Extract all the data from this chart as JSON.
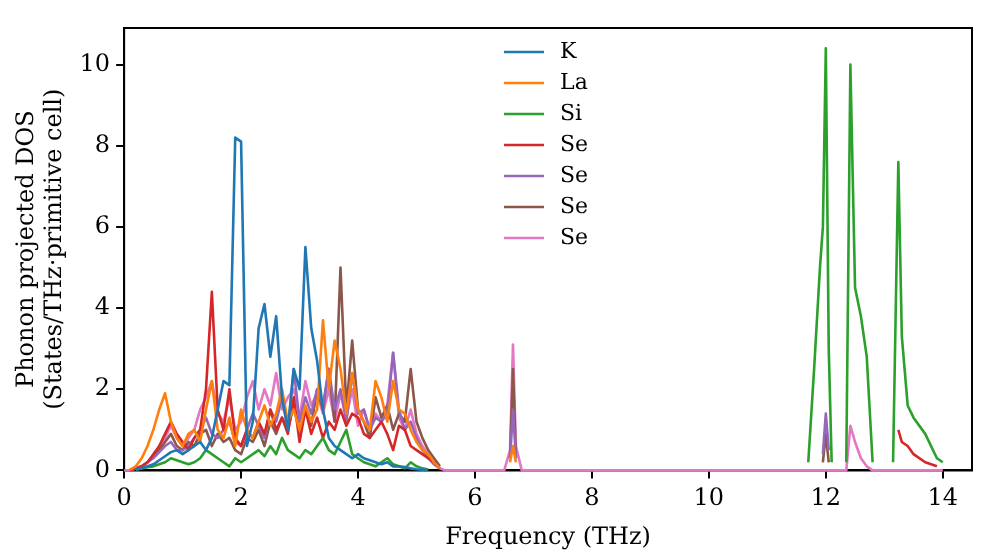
{
  "chart_data": {
    "type": "line",
    "xlabel": "Frequency (THz)",
    "ylabel": "Phonon projected DOS\n(States/THz·primitive cell)",
    "x": [
      0,
      0.1,
      0.2,
      0.3,
      0.4,
      0.5,
      0.6,
      0.7,
      0.8,
      0.9,
      1.0,
      1.1,
      1.2,
      1.3,
      1.4,
      1.5,
      1.6,
      1.7,
      1.8,
      1.9,
      2.0,
      2.1,
      2.2,
      2.3,
      2.4,
      2.5,
      2.6,
      2.7,
      2.8,
      2.9,
      3.0,
      3.1,
      3.2,
      3.3,
      3.4,
      3.5,
      3.6,
      3.7,
      3.8,
      3.9,
      4.0,
      4.1,
      4.2,
      4.3,
      4.4,
      4.5,
      4.6,
      4.7,
      4.8,
      4.9,
      5.0,
      5.1,
      5.2,
      5.3,
      5.4,
      5.5,
      6.5,
      6.6,
      6.65,
      6.7,
      6.8,
      7.0,
      11.6,
      11.7,
      11.8,
      11.9,
      11.95,
      12.0,
      12.05,
      12.1,
      12.2,
      12.3,
      12.35,
      12.42,
      12.5,
      12.6,
      12.7,
      12.8,
      13.0,
      13.15,
      13.24,
      13.3,
      13.4,
      13.5,
      13.7,
      13.9,
      14.0
    ],
    "series": [
      {
        "name": "K",
        "color": "#1f77b4",
        "values": [
          null,
          null,
          0.02,
          0.05,
          0.1,
          0.15,
          0.25,
          0.35,
          0.45,
          0.5,
          0.4,
          0.5,
          0.6,
          0.7,
          0.5,
          0.8,
          1.5,
          2.2,
          2.1,
          8.2,
          8.1,
          0.6,
          1.2,
          3.5,
          4.1,
          2.8,
          3.8,
          1.8,
          1.0,
          2.5,
          2.0,
          5.5,
          3.5,
          2.7,
          1.5,
          0.8,
          0.6,
          0.5,
          0.4,
          0.3,
          0.4,
          0.3,
          0.25,
          0.2,
          0.15,
          0.2,
          0.1,
          0.1,
          0.08,
          0.05,
          0.03,
          0.02,
          0.01,
          null,
          null,
          null,
          null,
          null,
          null,
          null,
          null,
          null,
          null,
          null,
          null,
          null,
          null,
          null,
          null,
          null,
          null,
          null,
          null,
          null,
          null,
          null,
          null,
          null,
          null,
          null,
          null,
          null,
          null,
          null,
          null,
          null,
          null
        ]
      },
      {
        "name": "La",
        "color": "#ff7f0e",
        "values": [
          null,
          0.02,
          0.1,
          0.3,
          0.6,
          1.0,
          1.5,
          1.9,
          1.2,
          0.8,
          0.6,
          0.9,
          1.0,
          0.7,
          1.5,
          2.2,
          1.0,
          0.8,
          1.3,
          0.6,
          1.5,
          1.0,
          0.8,
          1.2,
          1.6,
          1.1,
          1.4,
          2.0,
          1.2,
          1.5,
          1.0,
          1.6,
          1.2,
          1.5,
          3.7,
          2.0,
          3.2,
          2.5,
          1.4,
          2.4,
          1.5,
          1.2,
          1.0,
          2.2,
          1.8,
          1.2,
          2.2,
          1.5,
          1.4,
          1.0,
          0.7,
          0.5,
          0.4,
          0.2,
          0.05,
          null,
          null,
          0.2,
          0.6,
          0.2,
          null,
          null,
          null,
          null,
          null,
          null,
          null,
          null,
          null,
          null,
          null,
          null,
          null,
          null,
          null,
          null,
          null,
          null,
          null,
          null,
          null,
          null,
          null,
          null,
          null,
          null,
          null
        ]
      },
      {
        "name": "Si",
        "color": "#2ca02c",
        "values": [
          null,
          null,
          0.02,
          0.05,
          0.08,
          0.1,
          0.15,
          0.2,
          0.3,
          0.25,
          0.2,
          0.15,
          0.2,
          0.3,
          0.5,
          0.4,
          0.3,
          0.2,
          0.1,
          0.3,
          0.2,
          0.3,
          0.4,
          0.5,
          0.35,
          0.6,
          0.4,
          0.8,
          0.5,
          0.4,
          0.3,
          0.5,
          0.4,
          0.6,
          0.8,
          0.5,
          0.4,
          0.7,
          1.0,
          0.4,
          0.3,
          0.2,
          0.15,
          0.1,
          0.2,
          0.3,
          0.15,
          0.1,
          0.05,
          0.2,
          0.1,
          0.05,
          0.02,
          null,
          null,
          null,
          null,
          null,
          null,
          null,
          null,
          null,
          null,
          0.2,
          2.5,
          5.0,
          6.0,
          10.4,
          3.0,
          0.2,
          null,
          null,
          0.2,
          10.0,
          4.5,
          3.8,
          2.8,
          0.2,
          null,
          0.2,
          7.6,
          3.3,
          1.6,
          1.3,
          0.9,
          0.3,
          0.2
        ]
      },
      {
        "name": "Se",
        "color": "#d62728",
        "values": [
          null,
          0.01,
          0.05,
          0.1,
          0.2,
          0.4,
          0.6,
          0.9,
          1.2,
          0.9,
          0.7,
          0.5,
          0.8,
          1.0,
          2.0,
          4.4,
          1.5,
          1.0,
          2.0,
          0.8,
          0.6,
          1.0,
          0.8,
          1.2,
          0.9,
          1.5,
          1.0,
          1.3,
          0.9,
          1.8,
          0.7,
          1.5,
          0.9,
          1.3,
          0.8,
          1.2,
          1.0,
          1.5,
          1.1,
          1.4,
          1.3,
          0.9,
          0.8,
          1.0,
          1.2,
          0.9,
          0.5,
          1.1,
          1.0,
          0.6,
          0.5,
          0.4,
          0.3,
          0.2,
          0.05,
          null,
          null,
          null,
          null,
          null,
          null,
          null,
          null,
          null,
          null,
          null,
          null,
          null,
          null,
          null,
          null,
          null,
          null,
          null,
          null,
          null,
          null,
          null,
          null,
          null,
          1.0,
          0.7,
          0.6,
          0.4,
          0.2,
          0.1,
          null
        ]
      },
      {
        "name": "Se",
        "color": "#9467bd",
        "values": [
          null,
          0.01,
          0.05,
          0.1,
          0.2,
          0.3,
          0.45,
          0.6,
          0.7,
          0.5,
          0.5,
          0.6,
          0.8,
          1.0,
          1.3,
          0.9,
          0.8,
          1.0,
          1.2,
          0.7,
          0.6,
          1.0,
          1.4,
          1.1,
          0.8,
          1.5,
          1.2,
          1.8,
          1.0,
          2.5,
          1.2,
          1.8,
          1.4,
          2.0,
          1.6,
          2.5,
          1.5,
          2.0,
          1.2,
          2.4,
          1.4,
          1.5,
          1.0,
          1.3,
          1.2,
          1.4,
          2.9,
          1.5,
          1.0,
          1.2,
          0.8,
          0.5,
          0.3,
          0.15,
          0.05,
          null,
          null,
          0.3,
          1.5,
          0.3,
          null,
          null,
          null,
          null,
          null,
          null,
          0.4,
          1.4,
          0.5,
          null,
          null,
          null,
          null,
          null,
          null,
          null,
          null,
          null,
          null,
          null,
          null,
          null,
          null,
          null,
          null,
          null,
          null
        ]
      },
      {
        "name": "Se",
        "color": "#8c564b",
        "values": [
          null,
          0.01,
          0.05,
          0.1,
          0.2,
          0.35,
          0.5,
          0.7,
          0.9,
          0.6,
          0.5,
          0.7,
          0.6,
          0.9,
          1.0,
          0.6,
          0.9,
          0.7,
          0.8,
          0.5,
          0.4,
          0.8,
          0.7,
          1.0,
          0.6,
          1.2,
          0.9,
          1.3,
          1.0,
          1.6,
          1.0,
          1.5,
          1.1,
          2.0,
          1.5,
          2.5,
          1.2,
          5.0,
          1.5,
          3.2,
          1.5,
          1.2,
          0.8,
          1.8,
          1.3,
          1.6,
          1.0,
          1.4,
          1.2,
          2.5,
          1.2,
          0.8,
          0.5,
          0.3,
          0.1,
          null,
          null,
          0.3,
          2.5,
          0.3,
          null,
          null,
          null,
          null,
          null,
          null,
          0.2,
          0.9,
          0.2,
          null,
          null,
          null,
          null,
          null,
          null,
          null,
          null,
          null,
          null,
          null,
          null,
          null,
          null,
          null,
          null,
          null,
          null
        ]
      },
      {
        "name": "Se",
        "color": "#e377c2",
        "values": [
          0,
          0.01,
          0.04,
          0.1,
          0.2,
          0.35,
          0.55,
          0.8,
          1.1,
          0.8,
          0.6,
          0.8,
          1.0,
          1.5,
          1.8,
          2.2,
          1.4,
          1.2,
          1.8,
          1.0,
          1.2,
          1.8,
          2.2,
          1.5,
          2.0,
          1.6,
          2.4,
          1.5,
          1.8,
          2.0,
          1.3,
          2.2,
          1.6,
          1.9,
          1.4,
          2.0,
          1.2,
          1.9,
          1.3,
          2.0,
          1.1,
          1.5,
          1.0,
          1.4,
          1.2,
          1.6,
          2.9,
          1.3,
          1.0,
          1.5,
          0.9,
          0.6,
          0.4,
          0.2,
          0.05,
          0,
          0,
          0.5,
          3.1,
          0.6,
          0,
          0,
          0,
          0,
          0,
          0,
          0,
          0,
          0,
          0,
          0,
          0,
          0,
          1.1,
          0.7,
          0.3,
          0.1,
          0,
          0,
          0,
          0,
          0,
          0,
          0,
          0,
          0,
          0
        ]
      }
    ],
    "xlim": [
      0,
      14.5
    ],
    "xticks": [
      0,
      2,
      4,
      6,
      8,
      10,
      12,
      14
    ],
    "ylim": [
      0,
      10.9
    ],
    "yticks": [
      0,
      2,
      4,
      6,
      8,
      10
    ],
    "grid": false,
    "legend": "top center",
    "marker": "none",
    "line_style": "solid"
  }
}
